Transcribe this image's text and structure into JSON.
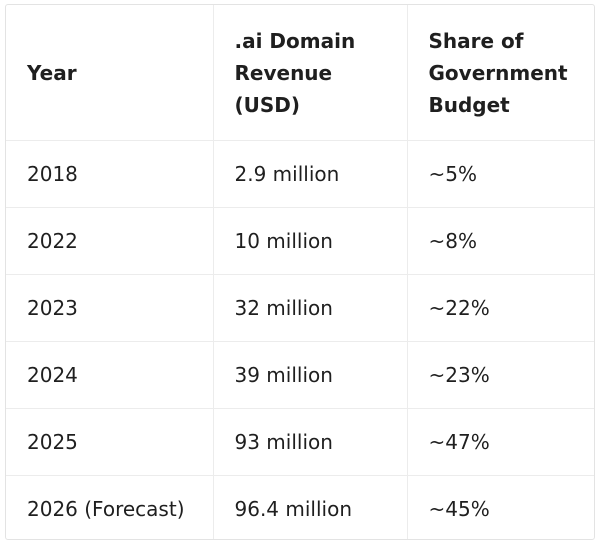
{
  "table": {
    "headers": [
      [
        "Year"
      ],
      [
        ".ai Domain",
        "Revenue",
        "(USD)"
      ],
      [
        "Share of",
        "Government",
        "Budget"
      ]
    ],
    "rows": [
      [
        "2018",
        "2.9 million",
        "~5%"
      ],
      [
        "2022",
        "10 million",
        "~8%"
      ],
      [
        "2023",
        "32 million",
        "~22%"
      ],
      [
        "2024",
        "39 million",
        "~23%"
      ],
      [
        "2025",
        "93 million",
        "~47%"
      ],
      [
        "2026 (Forecast)",
        "96.4 million",
        "~45%"
      ]
    ]
  }
}
